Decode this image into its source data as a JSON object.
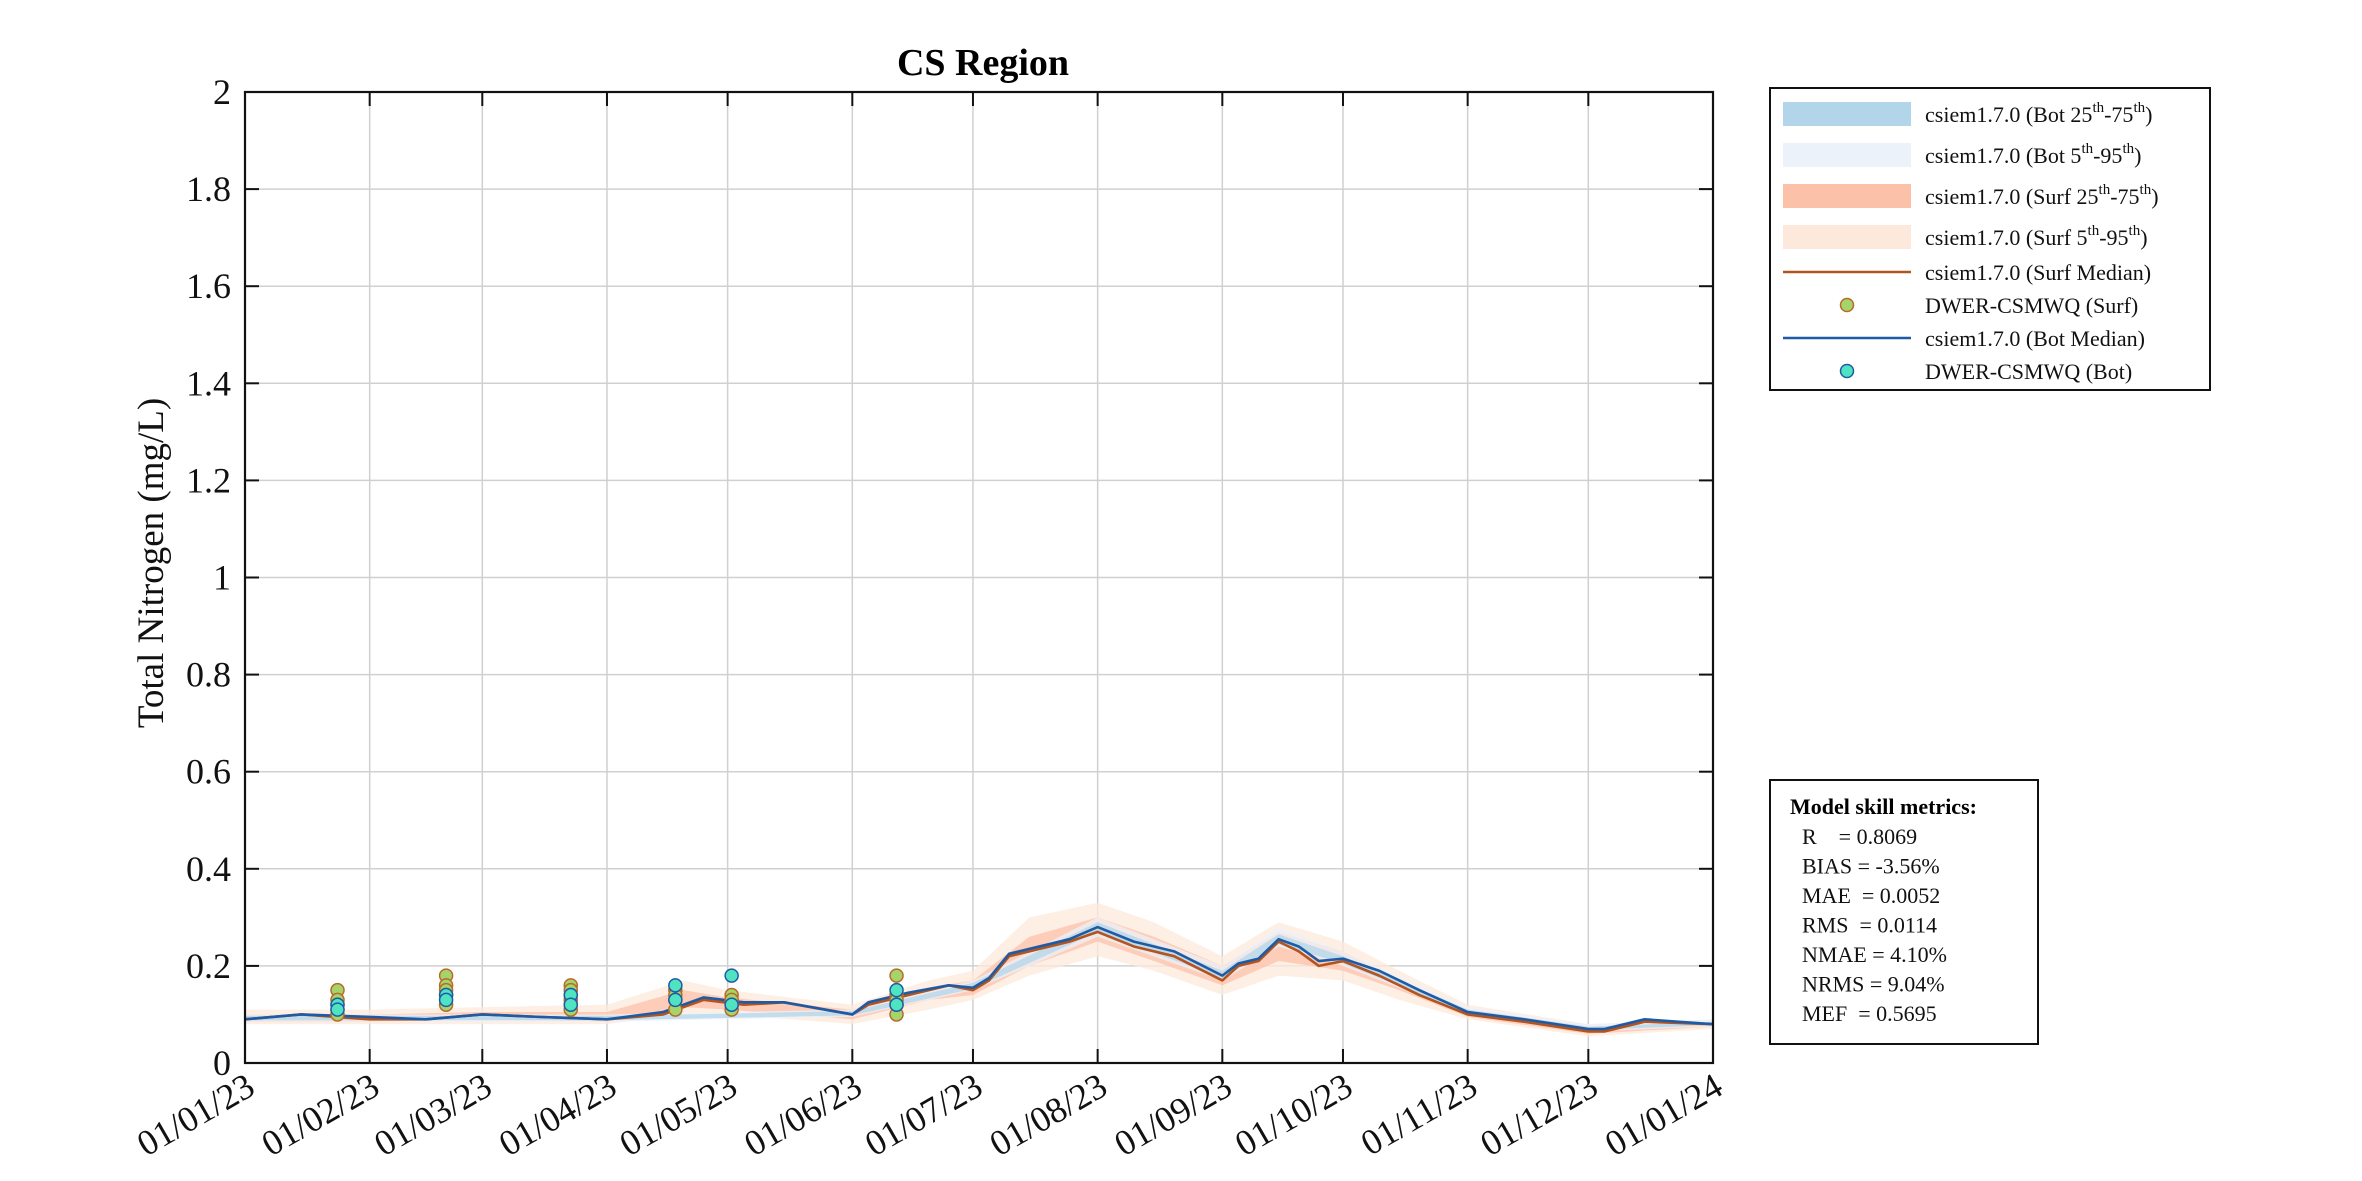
{
  "chart_data": {
    "type": "line",
    "title": "CS Region",
    "ylabel": "Total Nitrogen (mg/L)",
    "xlabel": "",
    "ylim": [
      0,
      2
    ],
    "yticks": [
      "0",
      "0.2",
      "0.4",
      "0.6",
      "0.8",
      "1",
      "1.2",
      "1.4",
      "1.6",
      "1.8",
      "2"
    ],
    "ytick_values": [
      0,
      0.2,
      0.4,
      0.6,
      0.8,
      1.0,
      1.2,
      1.4,
      1.6,
      1.8,
      2.0
    ],
    "xticks": [
      "01/01/23",
      "01/02/23",
      "01/03/23",
      "01/04/23",
      "01/05/23",
      "01/06/23",
      "01/07/23",
      "01/08/23",
      "01/09/23",
      "01/10/23",
      "01/11/23",
      "01/12/23",
      "01/01/24"
    ],
    "xtick_dates": [
      "2023-01-01",
      "2023-02-01",
      "2023-03-01",
      "2023-04-01",
      "2023-05-01",
      "2023-06-01",
      "2023-07-01",
      "2023-08-01",
      "2023-09-01",
      "2023-10-01",
      "2023-11-01",
      "2023-12-01",
      "2024-01-01"
    ],
    "xlim": [
      "2023-01-01",
      "2024-01-01"
    ],
    "grid": true,
    "legend_position": "outside-top-right",
    "colors": {
      "bot_25_75": "#b2d5ea",
      "bot_5_95": "#ecf2fa",
      "surf_25_75": "#fcc1a9",
      "surf_5_95": "#fde9dc",
      "surf_median": "#b3541e",
      "bot_median": "#1f5ba5",
      "obs_surf": "#a5d46a",
      "obs_bot": "#4fe3c1"
    },
    "legend": [
      {
        "label": "csiem1.7.0 (Bot 25",
        "sup1": "th",
        "mid": "-75",
        "sup2": "th",
        "end": ")",
        "kind": "band",
        "color": "#b2d5ea"
      },
      {
        "label": "csiem1.7.0 (Bot 5",
        "sup1": "th",
        "mid": "-95",
        "sup2": "th",
        "end": ")",
        "kind": "band",
        "color": "#ecf2fa"
      },
      {
        "label": "csiem1.7.0 (Surf 25",
        "sup1": "th",
        "mid": "-75",
        "sup2": "th",
        "end": ")",
        "kind": "band",
        "color": "#fcc1a9"
      },
      {
        "label": "csiem1.7.0 (Surf 5",
        "sup1": "th",
        "mid": "-95",
        "sup2": "th",
        "end": ")",
        "kind": "band",
        "color": "#fde9dc"
      },
      {
        "label": "csiem1.7.0 (Surf Median)",
        "sup1": "",
        "mid": "",
        "sup2": "",
        "end": "",
        "kind": "line",
        "color": "#b3541e"
      },
      {
        "label": "DWER-CSMWQ (Surf)",
        "sup1": "",
        "mid": "",
        "sup2": "",
        "end": "",
        "kind": "marker",
        "color": "#a5d46a"
      },
      {
        "label": "csiem1.7.0 (Bot Median)",
        "sup1": "",
        "mid": "",
        "sup2": "",
        "end": "",
        "kind": "line",
        "color": "#1f5ba5"
      },
      {
        "label": "DWER-CSMWQ (Bot)",
        "sup1": "",
        "mid": "",
        "sup2": "",
        "end": "",
        "kind": "marker",
        "color": "#4fe3c1"
      }
    ],
    "series": [
      {
        "name": "csiem1.7.0 (Surf Median)",
        "x": [
          "2023-01-01",
          "2023-01-15",
          "2023-02-01",
          "2023-02-15",
          "2023-03-01",
          "2023-03-15",
          "2023-04-01",
          "2023-04-15",
          "2023-04-25",
          "2023-05-05",
          "2023-05-15",
          "2023-06-01",
          "2023-06-05",
          "2023-06-15",
          "2023-06-25",
          "2023-07-01",
          "2023-07-05",
          "2023-07-10",
          "2023-07-15",
          "2023-07-20",
          "2023-07-25",
          "2023-08-01",
          "2023-08-10",
          "2023-08-20",
          "2023-09-01",
          "2023-09-05",
          "2023-09-10",
          "2023-09-15",
          "2023-09-20",
          "2023-09-25",
          "2023-10-01",
          "2023-10-10",
          "2023-10-20",
          "2023-11-01",
          "2023-11-15",
          "2023-12-01",
          "2023-12-05",
          "2023-12-15",
          "2024-01-01"
        ],
        "y": [
          0.09,
          0.1,
          0.09,
          0.09,
          0.1,
          0.095,
          0.09,
          0.1,
          0.13,
          0.12,
          0.125,
          0.1,
          0.12,
          0.14,
          0.16,
          0.15,
          0.17,
          0.22,
          0.23,
          0.24,
          0.25,
          0.27,
          0.24,
          0.22,
          0.17,
          0.2,
          0.21,
          0.25,
          0.23,
          0.2,
          0.21,
          0.18,
          0.14,
          0.1,
          0.085,
          0.065,
          0.065,
          0.085,
          0.08
        ]
      },
      {
        "name": "csiem1.7.0 (Bot Median)",
        "x": [
          "2023-01-01",
          "2023-01-15",
          "2023-02-01",
          "2023-02-15",
          "2023-03-01",
          "2023-03-15",
          "2023-04-01",
          "2023-04-15",
          "2023-04-25",
          "2023-05-05",
          "2023-05-15",
          "2023-06-01",
          "2023-06-05",
          "2023-06-15",
          "2023-06-25",
          "2023-07-01",
          "2023-07-05",
          "2023-07-10",
          "2023-07-15",
          "2023-07-20",
          "2023-07-25",
          "2023-08-01",
          "2023-08-10",
          "2023-08-20",
          "2023-09-01",
          "2023-09-05",
          "2023-09-10",
          "2023-09-15",
          "2023-09-20",
          "2023-09-25",
          "2023-10-01",
          "2023-10-10",
          "2023-10-20",
          "2023-11-01",
          "2023-11-15",
          "2023-12-01",
          "2023-12-05",
          "2023-12-15",
          "2024-01-01"
        ],
        "y": [
          0.09,
          0.1,
          0.095,
          0.09,
          0.1,
          0.095,
          0.09,
          0.105,
          0.135,
          0.125,
          0.125,
          0.1,
          0.125,
          0.145,
          0.16,
          0.155,
          0.175,
          0.225,
          0.235,
          0.245,
          0.255,
          0.28,
          0.25,
          0.23,
          0.18,
          0.205,
          0.215,
          0.255,
          0.24,
          0.21,
          0.215,
          0.19,
          0.15,
          0.105,
          0.09,
          0.07,
          0.07,
          0.09,
          0.08
        ]
      }
    ],
    "bands": [
      {
        "name": "Surf 5th-95th",
        "x": [
          "2023-01-01",
          "2023-02-01",
          "2023-03-01",
          "2023-04-01",
          "2023-04-20",
          "2023-05-01",
          "2023-06-01",
          "2023-06-20",
          "2023-07-01",
          "2023-07-15",
          "2023-08-01",
          "2023-08-15",
          "2023-09-01",
          "2023-09-15",
          "2023-10-01",
          "2023-10-15",
          "2023-11-01",
          "2023-12-01",
          "2024-01-01"
        ],
        "lo": [
          0.08,
          0.08,
          0.08,
          0.08,
          0.1,
          0.1,
          0.08,
          0.11,
          0.13,
          0.18,
          0.22,
          0.19,
          0.14,
          0.18,
          0.17,
          0.13,
          0.09,
          0.055,
          0.07
        ],
        "hi": [
          0.11,
          0.11,
          0.115,
          0.12,
          0.17,
          0.15,
          0.12,
          0.17,
          0.19,
          0.3,
          0.33,
          0.29,
          0.22,
          0.29,
          0.25,
          0.19,
          0.12,
          0.08,
          0.09
        ]
      },
      {
        "name": "Surf 25th-75th",
        "x": [
          "2023-01-01",
          "2023-02-01",
          "2023-03-01",
          "2023-04-01",
          "2023-04-20",
          "2023-05-01",
          "2023-06-01",
          "2023-06-20",
          "2023-07-01",
          "2023-07-15",
          "2023-08-01",
          "2023-08-15",
          "2023-09-01",
          "2023-09-15",
          "2023-10-01",
          "2023-10-15",
          "2023-11-01",
          "2023-12-01",
          "2024-01-01"
        ],
        "lo": [
          0.085,
          0.085,
          0.09,
          0.085,
          0.115,
          0.11,
          0.09,
          0.13,
          0.14,
          0.2,
          0.25,
          0.21,
          0.16,
          0.21,
          0.19,
          0.15,
          0.095,
          0.06,
          0.075
        ],
        "hi": [
          0.1,
          0.1,
          0.105,
          0.105,
          0.15,
          0.135,
          0.11,
          0.155,
          0.17,
          0.26,
          0.3,
          0.26,
          0.2,
          0.27,
          0.23,
          0.17,
          0.11,
          0.075,
          0.085
        ]
      },
      {
        "name": "Bot 5th-95th",
        "x": [
          "2023-01-01",
          "2023-04-01",
          "2023-06-01",
          "2023-07-01",
          "2023-08-01",
          "2023-09-01",
          "2023-09-15",
          "2023-10-01",
          "2023-11-01",
          "2023-12-01",
          "2024-01-01"
        ],
        "lo": [
          0.085,
          0.085,
          0.095,
          0.15,
          0.26,
          0.17,
          0.24,
          0.2,
          0.1,
          0.065,
          0.075
        ],
        "hi": [
          0.1,
          0.1,
          0.11,
          0.17,
          0.3,
          0.2,
          0.28,
          0.23,
          0.115,
          0.08,
          0.09
        ]
      },
      {
        "name": "Bot 25th-75th",
        "x": [
          "2023-01-01",
          "2023-04-01",
          "2023-06-01",
          "2023-07-01",
          "2023-08-01",
          "2023-09-01",
          "2023-09-15",
          "2023-10-01",
          "2023-11-01",
          "2023-12-01",
          "2024-01-01"
        ],
        "lo": [
          0.088,
          0.088,
          0.098,
          0.153,
          0.27,
          0.175,
          0.245,
          0.205,
          0.102,
          0.068,
          0.078
        ],
        "hi": [
          0.097,
          0.097,
          0.107,
          0.165,
          0.29,
          0.19,
          0.265,
          0.22,
          0.11,
          0.075,
          0.085
        ]
      }
    ],
    "observations": {
      "surf": {
        "x": [
          "2023-01-24",
          "2023-01-24",
          "2023-01-24",
          "2023-01-24",
          "2023-01-24",
          "2023-02-20",
          "2023-02-20",
          "2023-02-20",
          "2023-02-20",
          "2023-02-20",
          "2023-03-23",
          "2023-03-23",
          "2023-03-23",
          "2023-03-23",
          "2023-03-23",
          "2023-03-23",
          "2023-04-18",
          "2023-04-18",
          "2023-04-18",
          "2023-04-18",
          "2023-05-02",
          "2023-05-02",
          "2023-05-02",
          "2023-05-02",
          "2023-06-12",
          "2023-06-12",
          "2023-06-12",
          "2023-06-12",
          "2023-06-12"
        ],
        "y": [
          0.15,
          0.13,
          0.12,
          0.11,
          0.1,
          0.18,
          0.16,
          0.15,
          0.14,
          0.12,
          0.16,
          0.15,
          0.14,
          0.13,
          0.12,
          0.11,
          0.15,
          0.14,
          0.13,
          0.11,
          0.14,
          0.13,
          0.12,
          0.11,
          0.18,
          0.14,
          0.13,
          0.12,
          0.1
        ]
      },
      "bot": {
        "x": [
          "2023-01-24",
          "2023-01-24",
          "2023-02-20",
          "2023-02-20",
          "2023-03-23",
          "2023-03-23",
          "2023-04-18",
          "2023-04-18",
          "2023-05-02",
          "2023-05-02",
          "2023-06-12",
          "2023-06-12"
        ],
        "y": [
          0.12,
          0.11,
          0.14,
          0.13,
          0.14,
          0.12,
          0.16,
          0.13,
          0.18,
          0.12,
          0.15,
          0.12
        ]
      }
    },
    "skill_metrics": {
      "heading": "Model skill metrics:",
      "lines": [
        "R    = 0.8069",
        "BIAS = -3.56%",
        "MAE  = 0.0052",
        "RMS  = 0.0114",
        "NMAE = 4.10%",
        "NRMS = 9.04%",
        "MEF  = 0.5695"
      ]
    }
  }
}
